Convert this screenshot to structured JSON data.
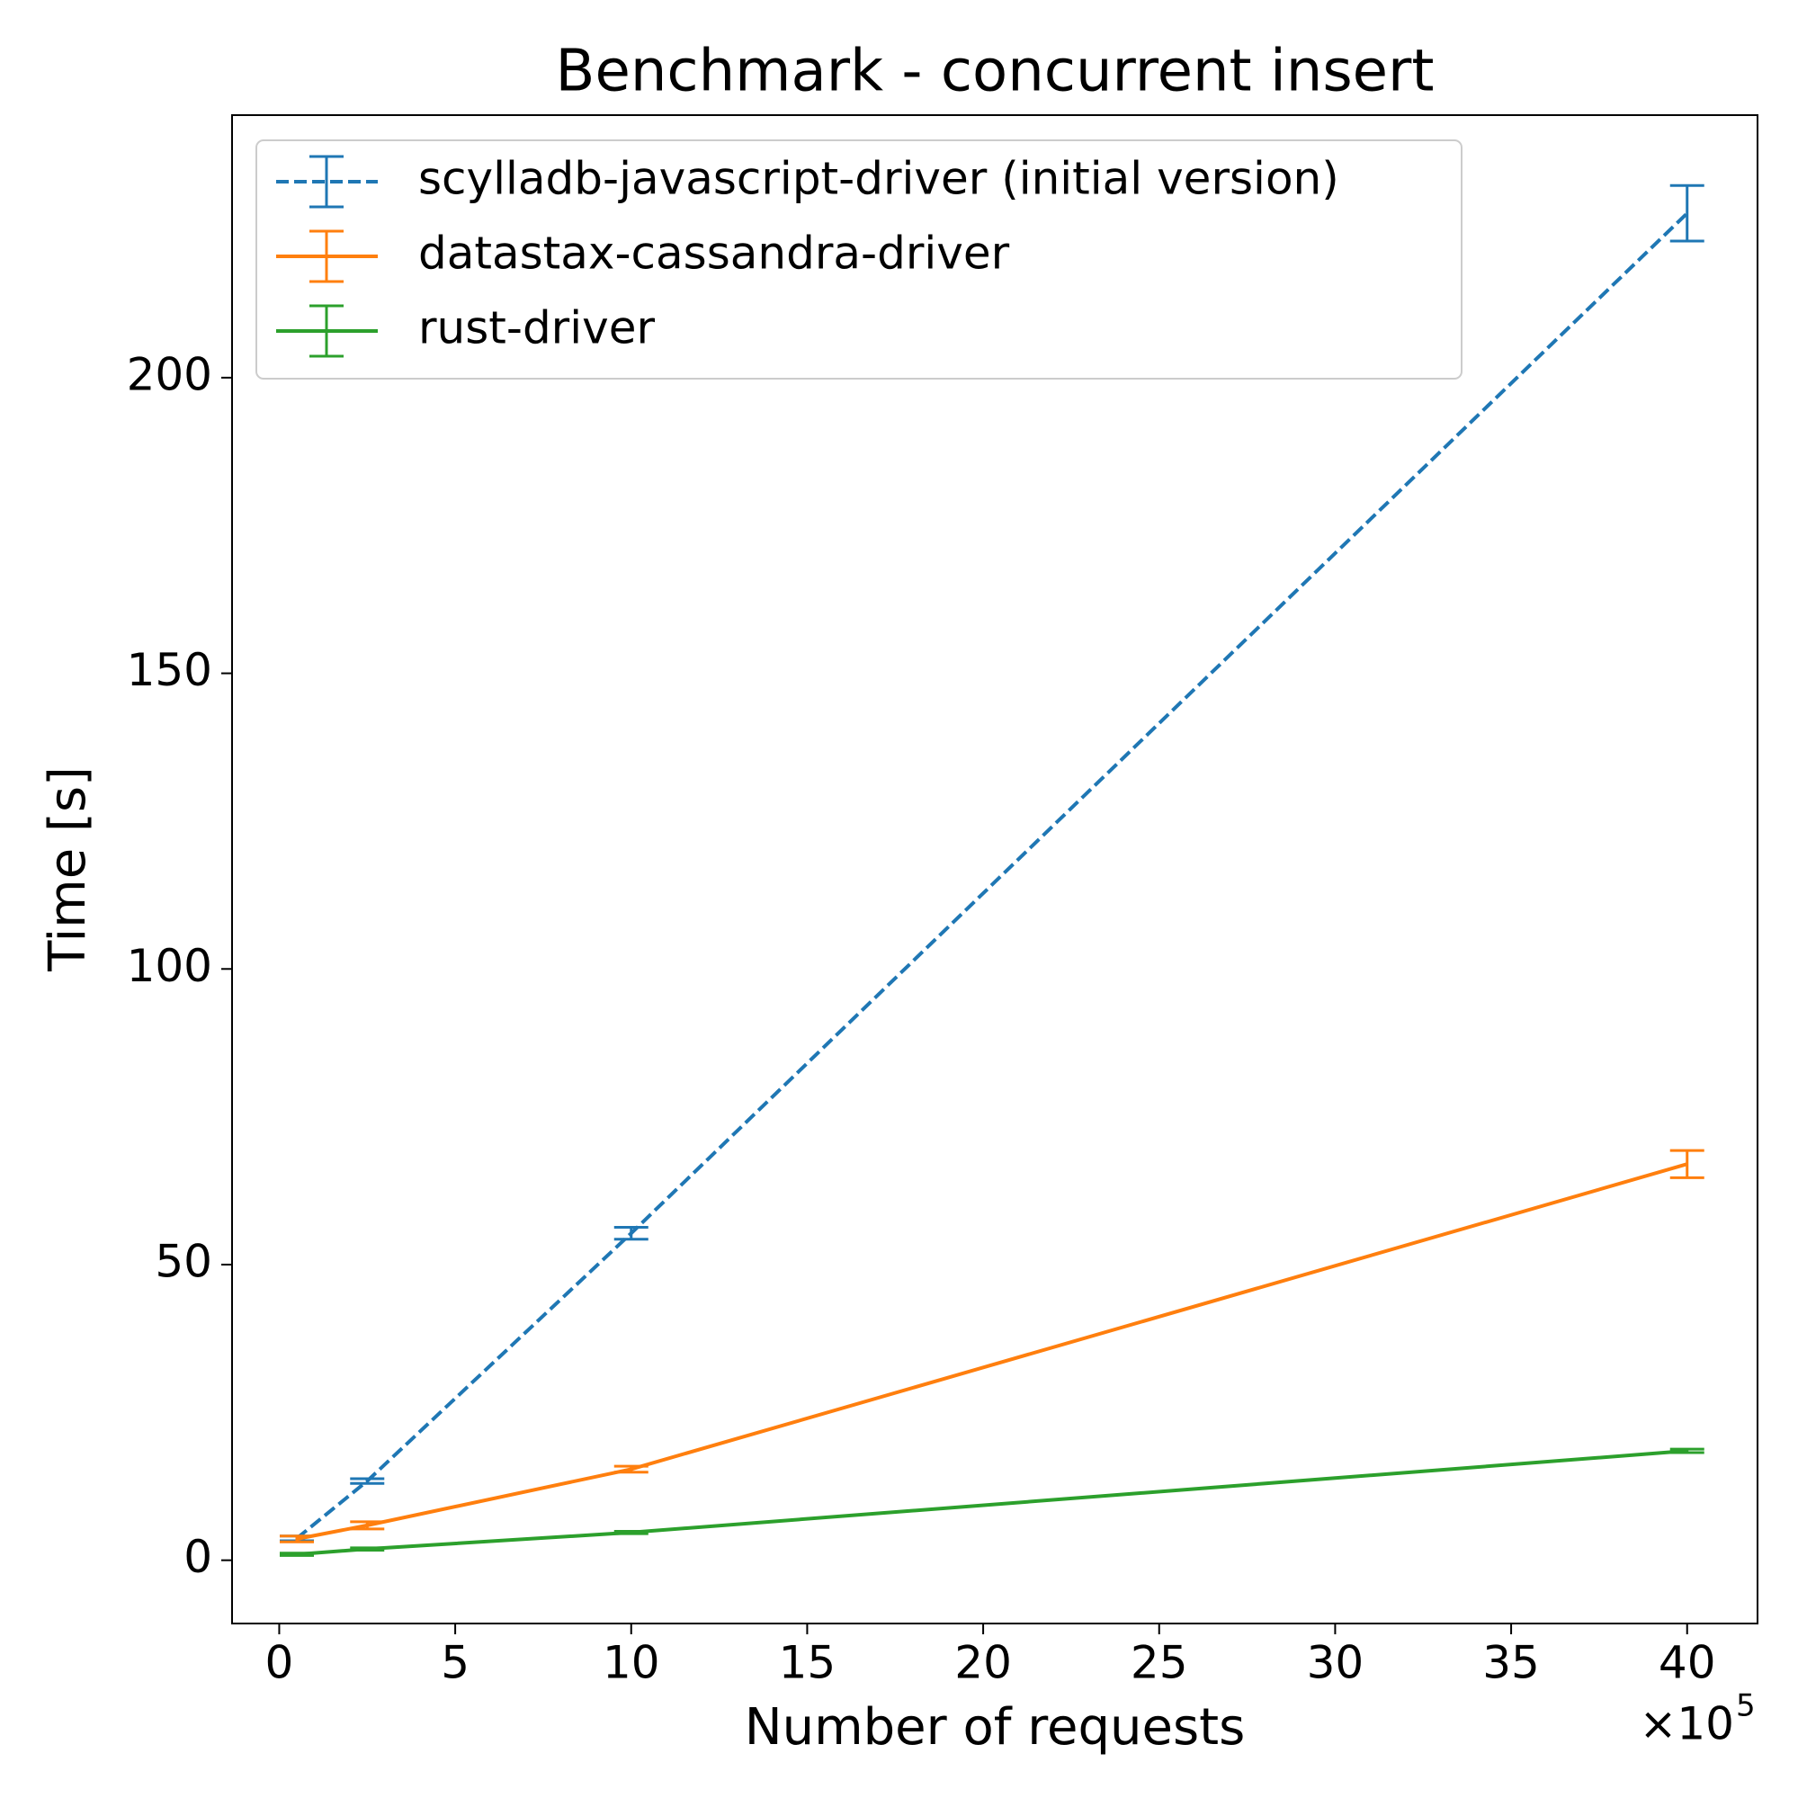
{
  "chart_data": {
    "type": "errorbar-line",
    "title": "Benchmark - concurrent insert",
    "x_label": "Number of requests",
    "x_offset_text": "×10",
    "x_offset_exponent": "5",
    "y_label": "Time [s]",
    "x": [
      0.5,
      2.5,
      10,
      40
    ],
    "series": [
      {
        "name": "scylladb-javascript-driver (initial version)",
        "color": "#1f77b4",
        "linestyle": "dashed",
        "values": [
          3.7,
          13.4,
          55.3,
          227.8
        ],
        "errors": [
          0.4,
          0.4,
          1.0,
          4.7
        ]
      },
      {
        "name": "datastax-cassandra-driver",
        "color": "#ff7f0e",
        "linestyle": "solid",
        "values": [
          3.6,
          5.9,
          15.4,
          67
        ],
        "errors": [
          0.5,
          0.6,
          0.5,
          2.3
        ]
      },
      {
        "name": "rust-driver",
        "color": "#2ca02c",
        "linestyle": "solid",
        "values": [
          1,
          1.9,
          4.7,
          18.5
        ],
        "errors": [
          0.2,
          0.2,
          0.2,
          0.3
        ]
      }
    ],
    "xlim": [
      -1.34,
      42.0
    ],
    "ylim": [
      -10.7,
      244.4
    ],
    "xticks": [
      0,
      5,
      10,
      15,
      20,
      25,
      30,
      35,
      40
    ],
    "yticks": [
      0,
      50,
      100,
      150,
      200
    ],
    "legend": "upper left",
    "grid": false
  }
}
